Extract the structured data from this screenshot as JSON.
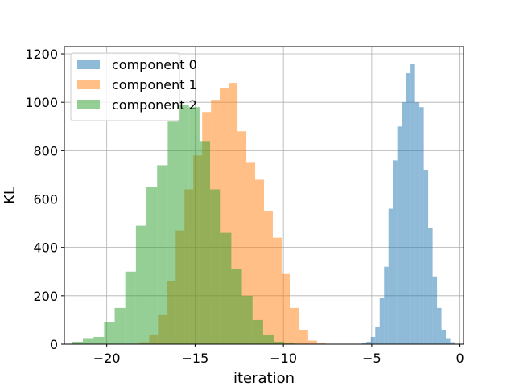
{
  "chart_data": {
    "type": "bar",
    "xlabel": "iteration",
    "ylabel": "KL",
    "xlim": [
      -22.4,
      0.2
    ],
    "ylim": [
      0,
      1230
    ],
    "xticks": [
      -20,
      -15,
      -10,
      -5,
      0
    ],
    "xtick_labels": [
      "−20",
      "−15",
      "−10",
      "−5",
      "0"
    ],
    "yticks": [
      0,
      200,
      400,
      600,
      800,
      1000,
      1200
    ],
    "ytick_labels": [
      "0",
      "200",
      "400",
      "600",
      "800",
      "1000",
      "1200"
    ],
    "grid": true,
    "legend_position": "top-left",
    "series": [
      {
        "name": "component 0",
        "color": "#1f77b4",
        "bin_start": -5.55,
        "bin_width": 0.25,
        "counts": [
          3,
          10,
          30,
          70,
          190,
          320,
          560,
          760,
          900,
          1000,
          1120,
          1160,
          1000,
          980,
          720,
          480,
          280,
          150,
          60,
          25,
          8
        ]
      },
      {
        "name": "component 1",
        "color": "#ff7f0e",
        "bin_start": -18.6,
        "bin_width": 0.5,
        "counts": [
          2,
          8,
          40,
          120,
          260,
          470,
          640,
          780,
          960,
          1010,
          1060,
          1080,
          880,
          750,
          680,
          550,
          440,
          290,
          150,
          60,
          15,
          3
        ]
      },
      {
        "name": "component 2",
        "color": "#2ca02c",
        "bin_start": -21.95,
        "bin_width": 0.6,
        "counts": [
          10,
          25,
          30,
          90,
          150,
          300,
          490,
          650,
          740,
          920,
          990,
          980,
          840,
          640,
          460,
          310,
          200,
          100,
          40,
          10,
          3
        ]
      }
    ]
  }
}
